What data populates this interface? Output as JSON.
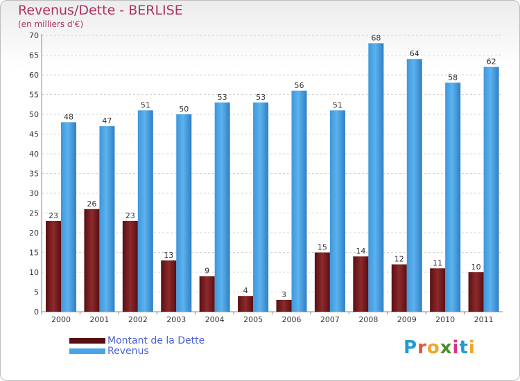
{
  "title": "Revenus/Dette - BERLISE",
  "subtitle": "(en milliers d'€)",
  "logo": {
    "chars": [
      "P",
      "r",
      "o",
      "x",
      "i",
      "t",
      "i"
    ],
    "colors": [
      "#1f9ad6",
      "#e0542d",
      "#f2a526",
      "#4b8e2a",
      "#d6328a",
      "#1f9ad6",
      "#f2a526"
    ]
  },
  "chart_data": {
    "type": "bar",
    "title": "Revenus/Dette - BERLISE",
    "subtitle": "(en milliers d'€)",
    "xlabel": "",
    "ylabel": "",
    "categories": [
      "2000",
      "2001",
      "2002",
      "2003",
      "2004",
      "2005",
      "2006",
      "2007",
      "2008",
      "2009",
      "2010",
      "2011"
    ],
    "series": [
      {
        "name": "Montant de la Dette",
        "color": "#7a1a1a",
        "values": [
          23,
          26,
          23,
          13,
          9,
          4,
          3,
          15,
          14,
          12,
          11,
          10
        ]
      },
      {
        "name": "Revenus",
        "color": "#4aa3e6",
        "values": [
          48,
          47,
          51,
          50,
          53,
          53,
          56,
          51,
          68,
          64,
          58,
          62
        ]
      }
    ],
    "ylim": [
      0,
      70
    ],
    "yticks": [
      0,
      5,
      10,
      15,
      20,
      25,
      30,
      35,
      40,
      45,
      50,
      55,
      60,
      65,
      70
    ],
    "grid": true,
    "legend_position": "bottom-left"
  }
}
